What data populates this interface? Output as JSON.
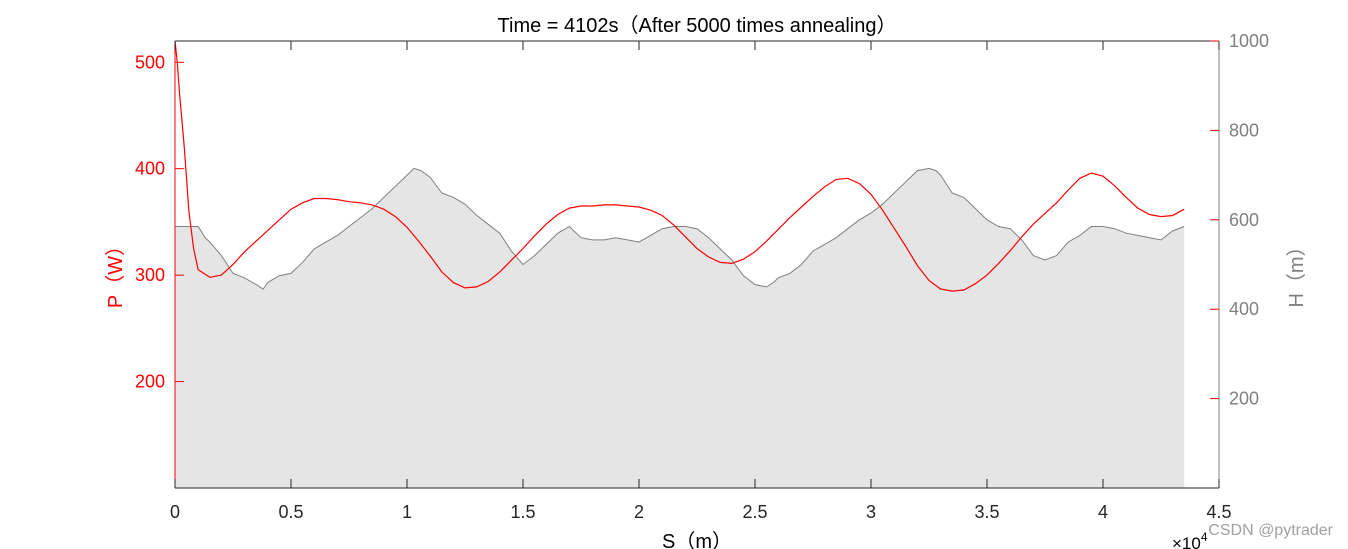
{
  "chart_data": {
    "type": "line",
    "title": "Time = 4102s（After 5000 times annealing）",
    "xlabel": "S（m）",
    "x_exponent_label": "×10",
    "x_exponent_power": "4",
    "xlim": [
      0,
      45000
    ],
    "x_ticks": [
      0,
      5000,
      10000,
      15000,
      20000,
      25000,
      30000,
      35000,
      40000,
      45000
    ],
    "x_tick_labels": [
      "0",
      "0.5",
      "1",
      "1.5",
      "2",
      "2.5",
      "3",
      "3.5",
      "4",
      "4.5"
    ],
    "y_left": {
      "label": "P（W）",
      "lim": [
        100,
        520
      ],
      "ticks": [
        200,
        300,
        400,
        500
      ],
      "tick_labels": [
        "200",
        "300",
        "400",
        "500"
      ],
      "color": "#ff0000"
    },
    "y_right": {
      "label": "H（m）",
      "lim": [
        0,
        1000
      ],
      "ticks": [
        200,
        400,
        600,
        800,
        1000
      ],
      "tick_labels": [
        "200",
        "400",
        "600",
        "800",
        "1000"
      ],
      "color": "#808080"
    },
    "grid": false,
    "series": [
      {
        "axis": "left",
        "kind": "line",
        "color": "#ff0000",
        "x": [
          0,
          100,
          200,
          400,
          600,
          800,
          1000,
          1500,
          2000,
          2500,
          3000,
          3500,
          4000,
          4500,
          5000,
          5500,
          6000,
          6500,
          7000,
          7500,
          8000,
          8500,
          9000,
          9500,
          10000,
          10500,
          11000,
          11500,
          12000,
          12500,
          13000,
          13500,
          14000,
          14500,
          15000,
          15500,
          16000,
          16500,
          17000,
          17500,
          18000,
          18500,
          19000,
          19500,
          20000,
          20500,
          21000,
          21500,
          22000,
          22500,
          23000,
          23500,
          24000,
          24500,
          25000,
          25500,
          26000,
          26500,
          27000,
          27500,
          28000,
          28500,
          29000,
          29500,
          30000,
          30500,
          31000,
          31500,
          32000,
          32500,
          33000,
          33500,
          34000,
          34500,
          35000,
          35500,
          36000,
          36500,
          37000,
          37500,
          38000,
          38500,
          39000,
          39500,
          40000,
          40500,
          41000,
          41500,
          42000,
          42500,
          43000,
          43500
        ],
        "values": [
          520,
          500,
          470,
          420,
          360,
          325,
          305,
          298,
          300,
          310,
          322,
          332,
          342,
          352,
          362,
          368,
          372,
          372,
          371,
          369,
          368,
          366,
          362,
          355,
          345,
          332,
          318,
          303,
          293,
          288,
          289,
          294,
          303,
          314,
          325,
          337,
          348,
          357,
          363,
          365,
          365,
          366,
          366,
          365,
          364,
          361,
          356,
          347,
          336,
          325,
          317,
          312,
          311,
          315,
          322,
          332,
          343,
          354,
          364,
          374,
          383,
          390,
          391,
          386,
          376,
          361,
          344,
          327,
          309,
          295,
          287,
          285,
          286,
          292,
          300,
          311,
          323,
          336,
          348,
          358,
          368,
          380,
          391,
          396,
          393,
          384,
          373,
          363,
          357,
          355,
          356,
          362
        ],
        "values_note": ""
      },
      {
        "axis": "right",
        "kind": "area",
        "color": "#808080",
        "fill": "#e5e5e5",
        "x": [
          0,
          500,
          1000,
          1300,
          1500,
          2000,
          2500,
          3000,
          3500,
          3800,
          4000,
          4500,
          5000,
          5500,
          6000,
          6500,
          7000,
          7500,
          8000,
          8500,
          9000,
          9500,
          10000,
          10300,
          10600,
          11000,
          11500,
          12000,
          12500,
          13000,
          13500,
          14000,
          14500,
          15000,
          15500,
          16000,
          16500,
          17000,
          17500,
          18000,
          18500,
          19000,
          19500,
          20000,
          20500,
          21000,
          21500,
          22000,
          22500,
          23000,
          23500,
          24000,
          24500,
          25000,
          25500,
          25800,
          26000,
          26500,
          27000,
          27500,
          28000,
          28500,
          29000,
          29500,
          30000,
          30500,
          31000,
          31500,
          32000,
          32500,
          32800,
          33000,
          33500,
          34000,
          34500,
          35000,
          35500,
          36000,
          36500,
          37000,
          37500,
          38000,
          38500,
          39000,
          39500,
          40000,
          40500,
          41000,
          41500,
          42000,
          42500,
          43000,
          43500
        ],
        "values": [
          585,
          585,
          585,
          560,
          550,
          520,
          480,
          470,
          455,
          445,
          460,
          475,
          480,
          505,
          535,
          550,
          565,
          585,
          605,
          625,
          650,
          675,
          700,
          715,
          710,
          695,
          660,
          650,
          635,
          610,
          590,
          570,
          530,
          500,
          520,
          545,
          570,
          585,
          560,
          555,
          555,
          560,
          555,
          550,
          565,
          580,
          585,
          585,
          580,
          560,
          535,
          510,
          475,
          455,
          450,
          460,
          470,
          480,
          500,
          530,
          545,
          560,
          580,
          600,
          615,
          635,
          660,
          685,
          710,
          715,
          710,
          700,
          660,
          650,
          625,
          600,
          585,
          580,
          555,
          520,
          510,
          520,
          550,
          565,
          585,
          585,
          580,
          570,
          565,
          560,
          555,
          575,
          585
        ],
        "values_note": ""
      }
    ]
  },
  "watermark": "CSDN @pytrader"
}
